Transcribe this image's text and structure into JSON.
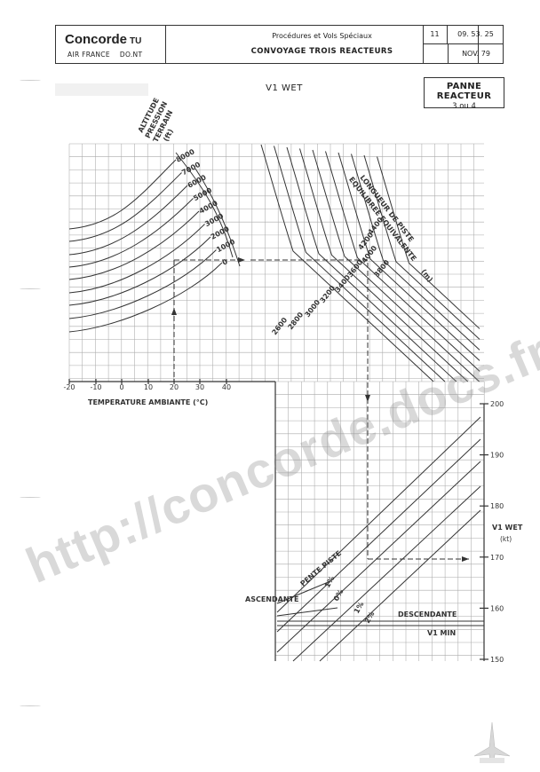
{
  "header": {
    "brand": "Concorde",
    "brand_suffix": "TU",
    "airline": "AIR FRANCE",
    "department": "DO.NT",
    "procedure": "Procédures et Vols Spéciaux",
    "title": "CONVOYAGE TROIS REACTEURS",
    "revision": "11",
    "reference": "09. 53. 25",
    "date": "NOV. 79"
  },
  "chart_title": "V1 WET",
  "failure_box": {
    "line1": "PANNE REACTEUR",
    "line2": "3 ou 4"
  },
  "chart_data": [
    {
      "type": "line",
      "title": "",
      "xlabel": "TEMPERATURE AMBIANTE (°C)",
      "x_ticks": [
        "-20",
        "-10",
        "0",
        "10",
        "20",
        "30",
        "40"
      ],
      "xlim": [
        -20,
        40
      ],
      "grid": true,
      "altitude_label": [
        "ALTITUDE",
        "PRESSION",
        "TERRAIN",
        "(ft)"
      ],
      "series": [
        {
          "name": "8000",
          "x": [
            -20,
            0,
            10,
            20,
            30
          ],
          "y": [
            0.62,
            0.72,
            0.85,
            1.0,
            1.16
          ]
        },
        {
          "name": "7000",
          "x": [
            -20,
            0,
            10,
            20,
            30
          ],
          "y": [
            0.55,
            0.65,
            0.78,
            0.92,
            1.06
          ]
        },
        {
          "name": "6000",
          "x": [
            -20,
            0,
            10,
            20,
            30
          ],
          "y": [
            0.48,
            0.57,
            0.7,
            0.84,
            0.98
          ]
        },
        {
          "name": "5000",
          "x": [
            -20,
            0,
            10,
            20,
            30
          ],
          "y": [
            0.41,
            0.5,
            0.62,
            0.76,
            0.9
          ]
        },
        {
          "name": "4000",
          "x": [
            -20,
            0,
            10,
            20,
            30
          ],
          "y": [
            0.34,
            0.43,
            0.55,
            0.68,
            0.82
          ]
        },
        {
          "name": "3000",
          "x": [
            -20,
            0,
            10,
            20,
            30
          ],
          "y": [
            0.27,
            0.36,
            0.47,
            0.6,
            0.74
          ]
        },
        {
          "name": "2000",
          "x": [
            -20,
            0,
            10,
            20,
            30
          ],
          "y": [
            0.2,
            0.29,
            0.39,
            0.52,
            0.66
          ]
        },
        {
          "name": "1000",
          "x": [
            -20,
            0,
            10,
            20,
            30
          ],
          "y": [
            0.13,
            0.21,
            0.31,
            0.44,
            0.58
          ]
        },
        {
          "name": "0",
          "x": [
            -20,
            0,
            10,
            20,
            30
          ],
          "y": [
            0.06,
            0.14,
            0.24,
            0.36,
            0.5
          ]
        }
      ]
    },
    {
      "type": "line",
      "title": "",
      "runway_label": [
        "LONGUEUR DE PISTE",
        "EQUILIBREE EQUIVALENTE",
        "(m)"
      ],
      "series_names": [
        "4400",
        "4200",
        "4000",
        "3800",
        "3600",
        "3400",
        "3200",
        "3000",
        "2800",
        "2600"
      ]
    },
    {
      "type": "line",
      "title": "",
      "ylabel": [
        "V1 WET",
        "(kt)"
      ],
      "y_ticks": [
        "200",
        "190",
        "180",
        "170",
        "160",
        "150"
      ],
      "ylim": [
        150,
        200
      ],
      "slope_label": "PENTE PISTE",
      "slope_series": [
        "1%",
        "0%",
        "1%",
        "2%"
      ],
      "ascendante": "ASCENDANTE",
      "descendante": "DESCENDANTE",
      "v1min_label": "V1 MIN",
      "v1min_value": 157,
      "example_v1": 170
    }
  ],
  "watermark": "http://concorde.docs.free.fr"
}
